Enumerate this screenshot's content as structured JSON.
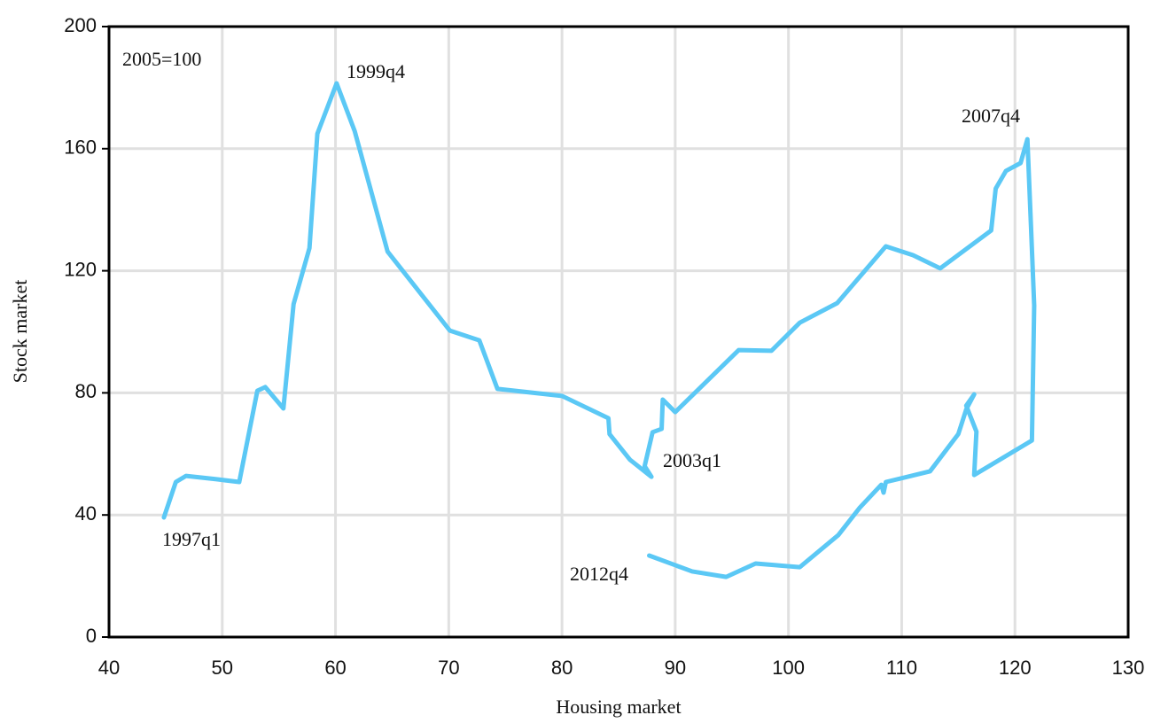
{
  "chart_data": {
    "type": "line",
    "subtitle": "2005=100",
    "x_label": "Housing market",
    "y_label": "Stock market",
    "xlim": [
      40,
      130
    ],
    "xticks": [
      40,
      50,
      60,
      70,
      80,
      90,
      100,
      110,
      120,
      130
    ],
    "ylim": [
      0,
      200
    ],
    "yticks": [
      0,
      40,
      80,
      120,
      160,
      200
    ],
    "grid": true,
    "annotations": [
      "1997q1",
      "1999q4",
      "2003q1",
      "2007q4",
      "2012q4"
    ],
    "series": [
      {
        "color": "#5bc8f5",
        "x": [
          44.85,
          45.9,
          46.8,
          49.5,
          51.5,
          53.1,
          53.8,
          55.4,
          56.3,
          57.7,
          58.4,
          60.1,
          61.7,
          64.6,
          70.1,
          72.7,
          74.3,
          80.0,
          84.1,
          84.2,
          86.0,
          87.9,
          87.3,
          88.0,
          88.8,
          88.9,
          90.0,
          95.6,
          98.5,
          101.0,
          104.3,
          108.6,
          111.0,
          113.4,
          117.9,
          118.3,
          119.2,
          120.5,
          121.1,
          121.4,
          121.7,
          121.5,
          116.4,
          116.6,
          115.7,
          116.4,
          115.7,
          115.0,
          112.5,
          108.6,
          108.4,
          108.2,
          106.3,
          104.4,
          101.0,
          97.1,
          94.5,
          91.5,
          87.7
        ],
        "values": [
          39.2,
          50.8,
          52.8,
          51.7,
          50.8,
          80.7,
          81.9,
          74.9,
          109.1,
          127.4,
          164.9,
          181.4,
          165.7,
          126.3,
          100.4,
          97.2,
          81.3,
          79.0,
          71.7,
          66.5,
          58.1,
          52.5,
          56.0,
          67.1,
          68.2,
          77.8,
          73.7,
          94.0,
          93.8,
          103.0,
          109.4,
          128.0,
          125.1,
          120.8,
          133.2,
          146.9,
          152.7,
          155.3,
          163.1,
          136.1,
          108.6,
          64.4,
          53.1,
          67.3,
          75.8,
          79.5,
          74.6,
          66.5,
          54.3,
          50.8,
          47.3,
          49.9,
          42.4,
          33.4,
          22.9,
          24.1,
          19.7,
          21.5,
          26.7
        ]
      }
    ]
  }
}
